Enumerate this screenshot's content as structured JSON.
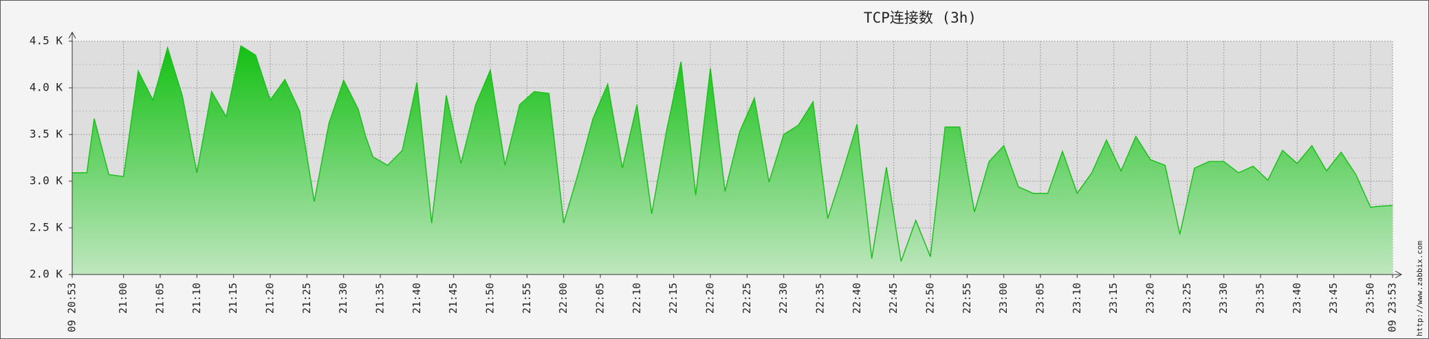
{
  "chart_data": {
    "type": "area",
    "title": "TCP连接数 (3h)",
    "watermark": "http://www.zabbix.com",
    "x": [
      "20:53",
      "20:55",
      "20:56",
      "20:58",
      "21:00",
      "21:02",
      "21:04",
      "21:06",
      "21:08",
      "21:10",
      "21:12",
      "21:14",
      "21:16",
      "21:18",
      "21:20",
      "21:22",
      "21:24",
      "21:26",
      "21:28",
      "21:30",
      "21:32",
      "21:33",
      "21:34",
      "21:36",
      "21:38",
      "21:40",
      "21:42",
      "21:44",
      "21:46",
      "21:48",
      "21:50",
      "21:52",
      "21:54",
      "21:56",
      "21:58",
      "22:00",
      "22:02",
      "22:04",
      "22:06",
      "22:08",
      "22:10",
      "22:12",
      "22:14",
      "22:16",
      "22:18",
      "22:20",
      "22:22",
      "22:24",
      "22:26",
      "22:28",
      "22:30",
      "22:32",
      "22:34",
      "22:36",
      "22:38",
      "22:40",
      "22:42",
      "22:44",
      "22:46",
      "22:48",
      "22:50",
      "22:52",
      "22:54",
      "22:56",
      "22:58",
      "23:00",
      "23:02",
      "23:04",
      "23:06",
      "23:08",
      "23:10",
      "23:12",
      "23:14",
      "23:16",
      "23:18",
      "23:20",
      "23:22",
      "23:24",
      "23:26",
      "23:28",
      "23:30",
      "23:32",
      "23:34",
      "23:36",
      "23:38",
      "23:40",
      "23:42",
      "23:44",
      "23:46",
      "23:48",
      "23:50",
      "23:51",
      "23:53"
    ],
    "values": [
      3090,
      3090,
      3670,
      3070,
      3050,
      4180,
      3870,
      4430,
      3920,
      3090,
      3960,
      3690,
      4450,
      4350,
      3870,
      4090,
      3750,
      2780,
      3620,
      4080,
      3770,
      3480,
      3260,
      3170,
      3330,
      4060,
      2550,
      3920,
      3190,
      3820,
      4190,
      3170,
      3820,
      3960,
      3940,
      2550,
      3090,
      3670,
      4040,
      3140,
      3820,
      2650,
      3530,
      4280,
      2850,
      4210,
      2890,
      3530,
      3890,
      2990,
      3500,
      3600,
      3850,
      2600,
      3090,
      3610,
      2170,
      3150,
      2140,
      2580,
      2190,
      3580,
      3580,
      2670,
      3210,
      3380,
      2940,
      2870,
      2870,
      3320,
      2870,
      3090,
      3440,
      3110,
      3480,
      3230,
      3170,
      2430,
      3140,
      3210,
      3210,
      3090,
      3160,
      3010,
      3330,
      3190,
      3380,
      3110,
      3310,
      3070,
      2720,
      2730,
      2740
    ],
    "color": "#1cbf1c",
    "xlim": [
      "20:53",
      "23:53"
    ],
    "xticks": [
      "21:05",
      "21:10",
      "21:15",
      "21:20",
      "21:25",
      "21:30",
      "21:35",
      "21:40",
      "21:45",
      "21:50",
      "21:55",
      "22:05",
      "22:10",
      "22:15",
      "22:20",
      "22:25",
      "22:30",
      "22:35",
      "22:40",
      "22:45",
      "22:50",
      "22:55",
      "23:05",
      "23:10",
      "23:15",
      "23:20",
      "23:25",
      "23:30",
      "23:35",
      "23:40",
      "23:45",
      "23:50"
    ],
    "xticks_major": [
      {
        "value": "20:53",
        "label": "09 20:53"
      },
      "21:00",
      "22:00",
      "23:00",
      {
        "value": "23:53",
        "label": "09 23:53"
      }
    ],
    "major_color": "#a83232",
    "ylim": [
      2000,
      4500
    ],
    "yticks": [
      {
        "value": 2000,
        "label": "2.0 K"
      },
      {
        "value": 2500,
        "label": "2.5 K"
      },
      {
        "value": 3000,
        "label": "3.0 K"
      },
      {
        "value": 3500,
        "label": "3.5 K"
      },
      {
        "value": 4000,
        "label": "4.0 K"
      },
      {
        "value": 4500,
        "label": "4.5 K"
      }
    ],
    "yminorticks": [
      2250,
      2750,
      3250,
      3750,
      4250
    ],
    "grid": true
  }
}
